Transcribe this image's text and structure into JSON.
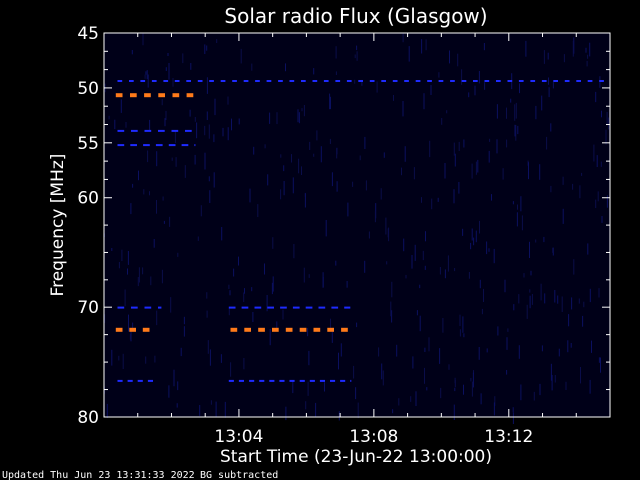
{
  "chart_data": {
    "type": "heatmap",
    "title": "Solar radio Flux (Glasgow)",
    "xlabel": "Start Time (23-Jun-22 13:00:00)",
    "ylabel": "Frequency [MHz]",
    "xlim_minutes": [
      0,
      15
    ],
    "ylim": [
      45,
      80
    ],
    "y_ticks": [
      {
        "value": 45,
        "label": "45",
        "pos": 0.0
      },
      {
        "value": 50,
        "label": "50",
        "pos": 0.143
      },
      {
        "value": 55,
        "label": "55",
        "pos": 0.286
      },
      {
        "value": 60,
        "label": "60",
        "pos": 0.429
      },
      {
        "value": 70,
        "label": "70",
        "pos": 0.714
      },
      {
        "value": 80,
        "label": "80",
        "pos": 1.0
      }
    ],
    "x_ticks": [
      {
        "minute": 4,
        "label": "13:04"
      },
      {
        "minute": 8,
        "label": "13:08"
      },
      {
        "minute": 12,
        "label": "13:12"
      }
    ],
    "bands": [
      {
        "color": "#1e2bff",
        "pos": 0.125,
        "t0": 0.4,
        "t1": 14.9,
        "dash": 0.14,
        "gap": 0.2
      },
      {
        "color": "#ff7a1a",
        "pos": 0.162,
        "t0": 0.35,
        "t1": 2.7,
        "dash": 0.2,
        "gap": 0.22
      },
      {
        "color": "#1e2bff",
        "pos": 0.255,
        "t0": 0.4,
        "t1": 2.7,
        "dash": 0.2,
        "gap": 0.2
      },
      {
        "color": "#1e2bff",
        "pos": 0.292,
        "t0": 0.4,
        "t1": 2.7,
        "dash": 0.2,
        "gap": 0.18
      },
      {
        "color": "#1e2bff",
        "pos": 0.715,
        "t0": 0.4,
        "t1": 1.7,
        "dash": 0.2,
        "gap": 0.2
      },
      {
        "color": "#1e2bff",
        "pos": 0.715,
        "t0": 3.7,
        "t1": 7.3,
        "dash": 0.2,
        "gap": 0.18
      },
      {
        "color": "#ff7a1a",
        "pos": 0.773,
        "t0": 0.35,
        "t1": 1.4,
        "dash": 0.2,
        "gap": 0.2
      },
      {
        "color": "#ff7a1a",
        "pos": 0.773,
        "t0": 3.75,
        "t1": 7.3,
        "dash": 0.2,
        "gap": 0.21
      },
      {
        "color": "#1e2bff",
        "pos": 0.906,
        "t0": 0.4,
        "t1": 1.5,
        "dash": 0.15,
        "gap": 0.15
      },
      {
        "color": "#1e2bff",
        "pos": 0.906,
        "t0": 3.7,
        "t1": 7.3,
        "dash": 0.15,
        "gap": 0.15
      }
    ],
    "background_color": "#000018",
    "grid": false,
    "legend": "none"
  },
  "footer": {
    "updated": "Updated Thu Jun 23 13:31:33 2022",
    "note": "BG subtracted"
  }
}
